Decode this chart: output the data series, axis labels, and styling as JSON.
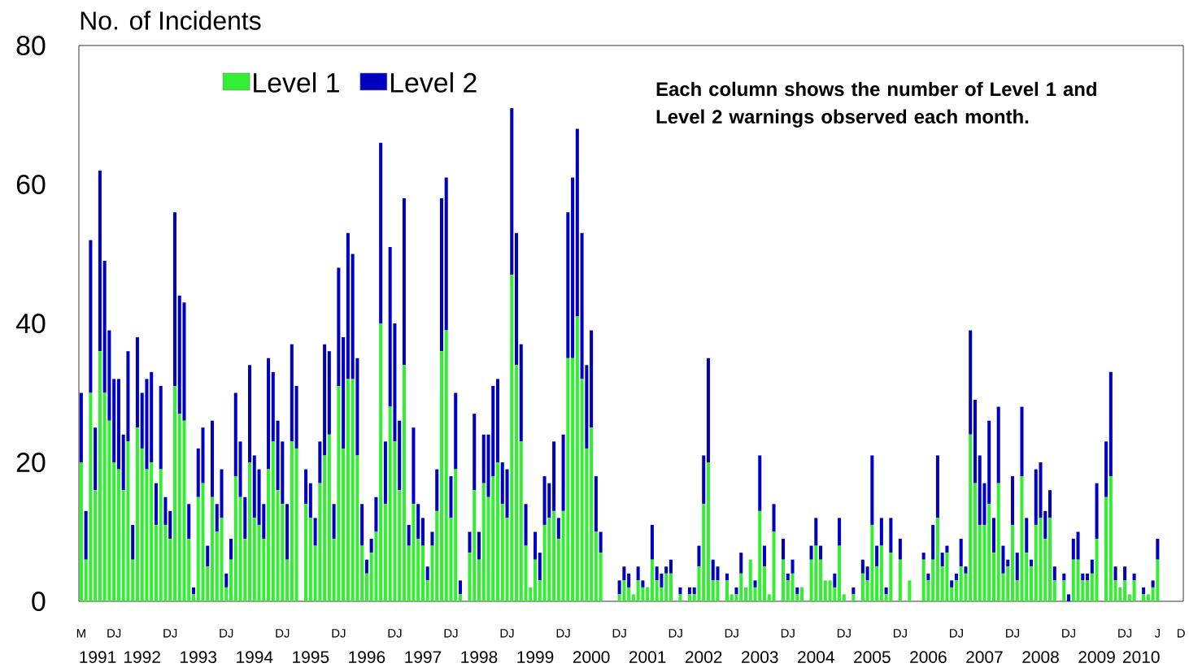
{
  "chart_data": {
    "type": "bar",
    "stacked": true,
    "ylabel": "No. of Incidents",
    "annotations": [
      "Each column shows the number of Level 1 and Level 2 warnings observed each month.",
      "1991",
      "1992",
      "1993",
      "1994",
      "1995",
      "1996",
      "1997",
      "1998",
      "1999",
      "2000",
      "2001",
      "2002",
      "2003",
      "2004",
      "2005",
      "2006",
      "2007",
      "2008",
      "2009",
      "2010"
    ],
    "legend": "top left",
    "categories": [
      "M",
      null,
      null,
      null,
      null,
      null,
      null,
      "DJ",
      null,
      null,
      null,
      null,
      null,
      null,
      null,
      null,
      null,
      null,
      null,
      "DJ",
      null,
      null,
      null,
      null,
      null,
      null,
      null,
      null,
      null,
      null,
      null,
      "DJ",
      null,
      null,
      null,
      null,
      null,
      null,
      null,
      null,
      null,
      null,
      null,
      "DJ",
      null,
      null,
      null,
      null,
      null,
      null,
      null,
      null,
      null,
      null,
      null,
      "DJ",
      null,
      null,
      null,
      null,
      null,
      null,
      null,
      null,
      null,
      null,
      null,
      "DJ",
      null,
      null,
      null,
      null,
      null,
      null,
      null,
      null,
      null,
      null,
      null,
      "DJ",
      null,
      null,
      null,
      null,
      null,
      null,
      null,
      null,
      null,
      null,
      null,
      "DJ",
      null,
      null,
      null,
      null,
      null,
      null,
      null,
      null,
      null,
      null,
      null,
      "DJ",
      null,
      null,
      null,
      null,
      null,
      null,
      null,
      null,
      null,
      null,
      null,
      "DJ",
      null,
      null,
      null,
      null,
      null,
      null,
      null,
      null,
      null,
      null,
      null,
      "DJ",
      null,
      null,
      null,
      null,
      null,
      null,
      null,
      null,
      null,
      null,
      null,
      "DJ",
      null,
      null,
      null,
      null,
      null,
      null,
      null,
      null,
      null,
      null,
      null,
      "DJ",
      null,
      null,
      null,
      null,
      null,
      null,
      null,
      null,
      null,
      null,
      null,
      "DJ",
      null,
      null,
      null,
      null,
      null,
      null,
      null,
      null,
      null,
      null,
      null,
      "DJ",
      null,
      null,
      null,
      null,
      null,
      null,
      null,
      null,
      null,
      null,
      null,
      "DJ",
      null,
      null,
      null,
      null,
      null,
      null,
      null,
      null,
      null,
      null,
      null,
      "DJ",
      null,
      null,
      null,
      null,
      null,
      null,
      null,
      null,
      null,
      null,
      null,
      "DJ",
      null,
      null,
      null,
      null,
      null,
      null,
      null,
      null,
      null,
      null,
      null,
      "DJ",
      null,
      null,
      null,
      null,
      null,
      null,
      "J",
      null,
      null,
      null,
      null,
      "D"
    ],
    "series": [
      {
        "name": "Level 1",
        "color": "#33ee33",
        "values": [
          20,
          6,
          30,
          16,
          36,
          30,
          26,
          20,
          19,
          16,
          23,
          6,
          25,
          22,
          19,
          20,
          11,
          19,
          11,
          9,
          31,
          27,
          26,
          9,
          1,
          15,
          17,
          5,
          15,
          10,
          12,
          2,
          6,
          18,
          15,
          9,
          20,
          12,
          11,
          9,
          19,
          23,
          16,
          14,
          6,
          23,
          22,
          0,
          14,
          12,
          8,
          17,
          21,
          24,
          9,
          31,
          22,
          32,
          32,
          21,
          8,
          4,
          7,
          10,
          40,
          14,
          28,
          23,
          16,
          34,
          8,
          14,
          9,
          8,
          3,
          8,
          13,
          36,
          39,
          12,
          19,
          1,
          0,
          7,
          16,
          6,
          17,
          15,
          18,
          20,
          14,
          12,
          47,
          34,
          23,
          8,
          2,
          6,
          3,
          11,
          12,
          13,
          9,
          13,
          35,
          35,
          41,
          32,
          22,
          25,
          10,
          7,
          0,
          0,
          0,
          1,
          3,
          2,
          1,
          3,
          2,
          2,
          6,
          3,
          2,
          4,
          4,
          0,
          1,
          0,
          1,
          1,
          5,
          14,
          20,
          3,
          3,
          0,
          3,
          1,
          1,
          4,
          2,
          6,
          2,
          13,
          5,
          1,
          10,
          0,
          6,
          3,
          4,
          1,
          2,
          0,
          6,
          8,
          6,
          3,
          3,
          2,
          8,
          1,
          0,
          1,
          0,
          4,
          3,
          11,
          5,
          8,
          1,
          7,
          0,
          6,
          0,
          3,
          0,
          0,
          6,
          3,
          6,
          12,
          5,
          7,
          2,
          3,
          5,
          4,
          24,
          17,
          11,
          11,
          14,
          7,
          17,
          4,
          5,
          11,
          3,
          18,
          7,
          5,
          11,
          12,
          9,
          12,
          3,
          0,
          3,
          0,
          6,
          6,
          3,
          3,
          4,
          9,
          0,
          15,
          18,
          3,
          2,
          3,
          1,
          3,
          0,
          1,
          1,
          2,
          6,
          0,
          0,
          0,
          0,
          0
        ]
      },
      {
        "name": "Level 2",
        "color": "#0000c0",
        "values": [
          10,
          7,
          22,
          9,
          26,
          19,
          13,
          12,
          13,
          8,
          13,
          5,
          13,
          8,
          13,
          13,
          6,
          12,
          4,
          4,
          25,
          17,
          17,
          5,
          1,
          7,
          8,
          3,
          11,
          4,
          7,
          2,
          3,
          12,
          8,
          6,
          14,
          9,
          8,
          5,
          16,
          10,
          10,
          9,
          8,
          14,
          9,
          0,
          5,
          5,
          4,
          6,
          16,
          12,
          5,
          17,
          16,
          21,
          18,
          14,
          6,
          2,
          2,
          5,
          26,
          9,
          23,
          17,
          10,
          24,
          3,
          11,
          5,
          4,
          2,
          2,
          6,
          22,
          22,
          6,
          11,
          2,
          0,
          3,
          11,
          4,
          7,
          9,
          13,
          12,
          6,
          7,
          24,
          19,
          14,
          6,
          0,
          4,
          4,
          7,
          5,
          10,
          3,
          11,
          21,
          26,
          27,
          21,
          12,
          14,
          8,
          3,
          0,
          0,
          0,
          2,
          2,
          2,
          0,
          2,
          1,
          0,
          5,
          2,
          2,
          1,
          2,
          0,
          1,
          0,
          1,
          1,
          3,
          7,
          15,
          3,
          2,
          0,
          1,
          0,
          1,
          3,
          0,
          0,
          1,
          8,
          3,
          0,
          4,
          0,
          3,
          1,
          2,
          1,
          0,
          0,
          2,
          4,
          2,
          0,
          0,
          2,
          4,
          0,
          0,
          1,
          0,
          2,
          2,
          10,
          3,
          4,
          1,
          5,
          0,
          3,
          0,
          0,
          0,
          0,
          1,
          1,
          5,
          9,
          2,
          1,
          1,
          1,
          4,
          1,
          15,
          12,
          10,
          6,
          12,
          5,
          11,
          4,
          1,
          7,
          4,
          10,
          5,
          1,
          8,
          8,
          4,
          4,
          2,
          0,
          1,
          1,
          3,
          4,
          1,
          1,
          2,
          8,
          0,
          8,
          15,
          2,
          0,
          2,
          0,
          1,
          0,
          1,
          0,
          1,
          3,
          0,
          0,
          0,
          0,
          0
        ]
      }
    ],
    "ylim": [
      0,
      80
    ],
    "yticks": [
      0,
      20,
      40,
      60,
      80
    ]
  }
}
